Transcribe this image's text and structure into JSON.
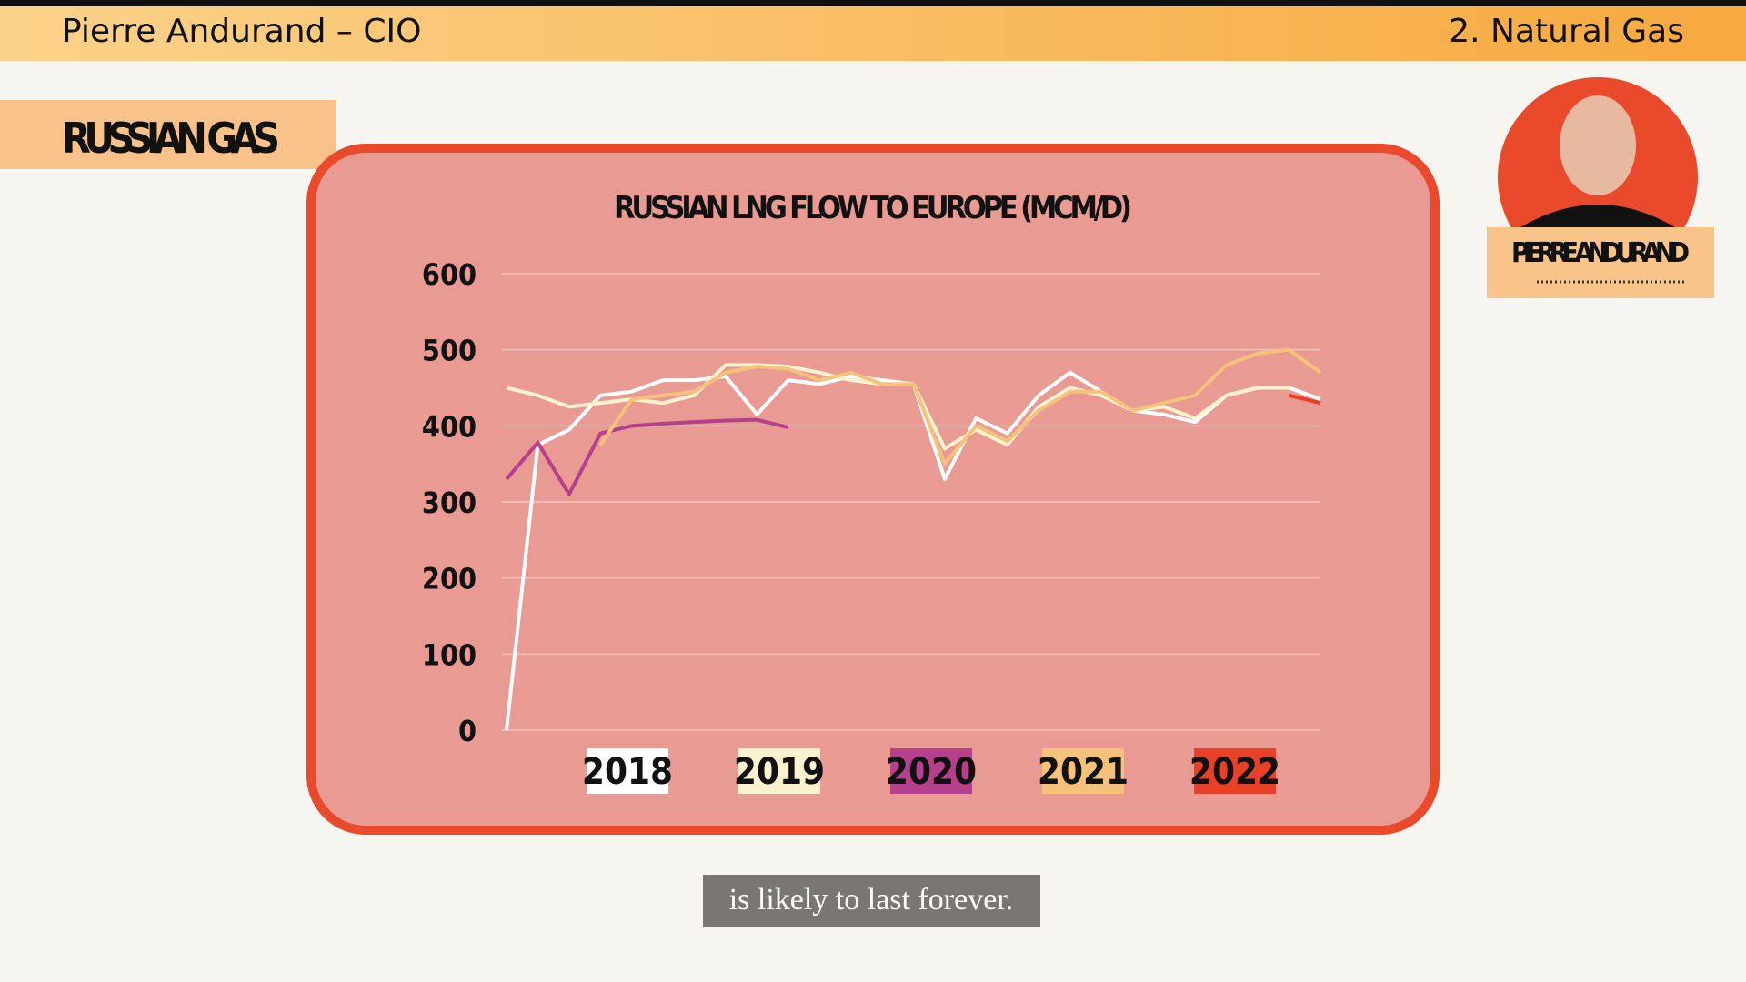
{
  "header": {
    "left": "Pierre Andurand – CIO",
    "right": "2. Natural Gas"
  },
  "section_title": "RUSSIAN GAS",
  "speaker": {
    "name": "PIERRE ANDURAND"
  },
  "caption": "is likely to last forever.",
  "chart_data": {
    "type": "line",
    "title": "RUSSIAN LNG FLOW TO EUROPE (MCM/D)",
    "categories": [
      null,
      null,
      null,
      null,
      null,
      null,
      null,
      null,
      null,
      null,
      null,
      null,
      null,
      null,
      null,
      null,
      null,
      null,
      null,
      null,
      null,
      null,
      null,
      null,
      null,
      null,
      null
    ],
    "series": [
      {
        "name": "2018",
        "color": "#ffffff",
        "values": [
          0,
          375,
          395,
          440,
          445,
          460,
          460,
          465,
          415,
          460,
          455,
          465,
          460,
          455,
          330,
          410,
          390,
          440,
          470,
          445,
          420,
          415,
          405,
          440,
          450,
          450,
          435
        ]
      },
      {
        "name": "2019",
        "color": "#fbf3cf",
        "values": [
          450,
          440,
          425,
          430,
          435,
          430,
          440,
          480,
          480,
          478,
          470,
          460,
          455,
          455,
          370,
          395,
          375,
          425,
          450,
          440,
          420,
          425,
          410,
          440,
          450,
          450,
          null
        ]
      },
      {
        "name": "2020",
        "color": "#b5408c",
        "values": [
          330,
          378,
          310,
          390,
          400,
          403,
          405,
          407,
          408,
          398,
          null,
          null,
          null,
          null,
          null,
          null,
          null,
          null,
          null,
          null,
          null,
          null,
          null,
          null,
          null,
          null,
          null
        ]
      },
      {
        "name": "2021",
        "color": "#f6c27a",
        "values": [
          null,
          null,
          null,
          375,
          435,
          440,
          445,
          470,
          478,
          475,
          460,
          470,
          455,
          455,
          350,
          400,
          380,
          420,
          445,
          445,
          420,
          430,
          440,
          480,
          495,
          500,
          470
        ]
      },
      {
        "name": "2022",
        "color": "#e8412a",
        "values": [
          null,
          null,
          null,
          null,
          null,
          null,
          null,
          null,
          null,
          null,
          null,
          null,
          null,
          null,
          null,
          null,
          null,
          null,
          null,
          null,
          null,
          null,
          null,
          null,
          null,
          440,
          430
        ]
      }
    ],
    "ylim": [
      0,
      600
    ],
    "yticks": [
      0,
      100,
      200,
      300,
      400,
      500,
      600
    ],
    "grid": true
  }
}
